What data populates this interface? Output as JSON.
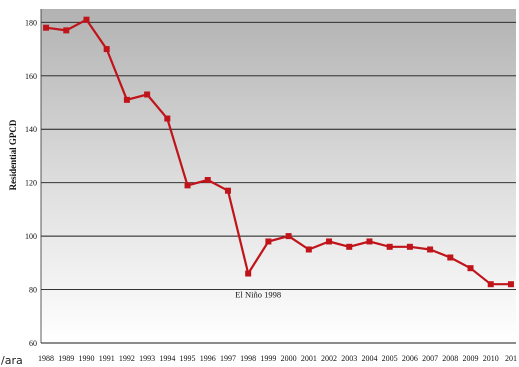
{
  "chart_data": {
    "type": "line",
    "title": "",
    "xlabel": "",
    "ylabel": "Residential GPCD",
    "ylim": [
      60,
      185
    ],
    "yticks": [
      60,
      80,
      100,
      120,
      140,
      160,
      180
    ],
    "grid": true,
    "categories": [
      "1988",
      "1989",
      "1990",
      "1991",
      "1992",
      "1993",
      "1994",
      "1995",
      "1996",
      "1997",
      "1998",
      "1999",
      "2000",
      "2001",
      "2002",
      "2003",
      "2004",
      "2005",
      "2006",
      "2007",
      "2008",
      "2009",
      "2010",
      "201"
    ],
    "series": [
      {
        "color": "#c0141b",
        "values": [
          178,
          177,
          181,
          170,
          151,
          153,
          144,
          119,
          121,
          117,
          86,
          98,
          100,
          95,
          98,
          96,
          98,
          96,
          96,
          95,
          92,
          88,
          82,
          82
        ]
      }
    ],
    "annotations": [
      {
        "text": "El Niño 1998",
        "x": "1998",
        "y": 77
      }
    ]
  },
  "stray_text": "/ara",
  "colors": {
    "line": "#c0141b",
    "bg_top": "#b2b2b2",
    "bg_bottom": "#ffffff",
    "grid": "#1a1a1a"
  }
}
